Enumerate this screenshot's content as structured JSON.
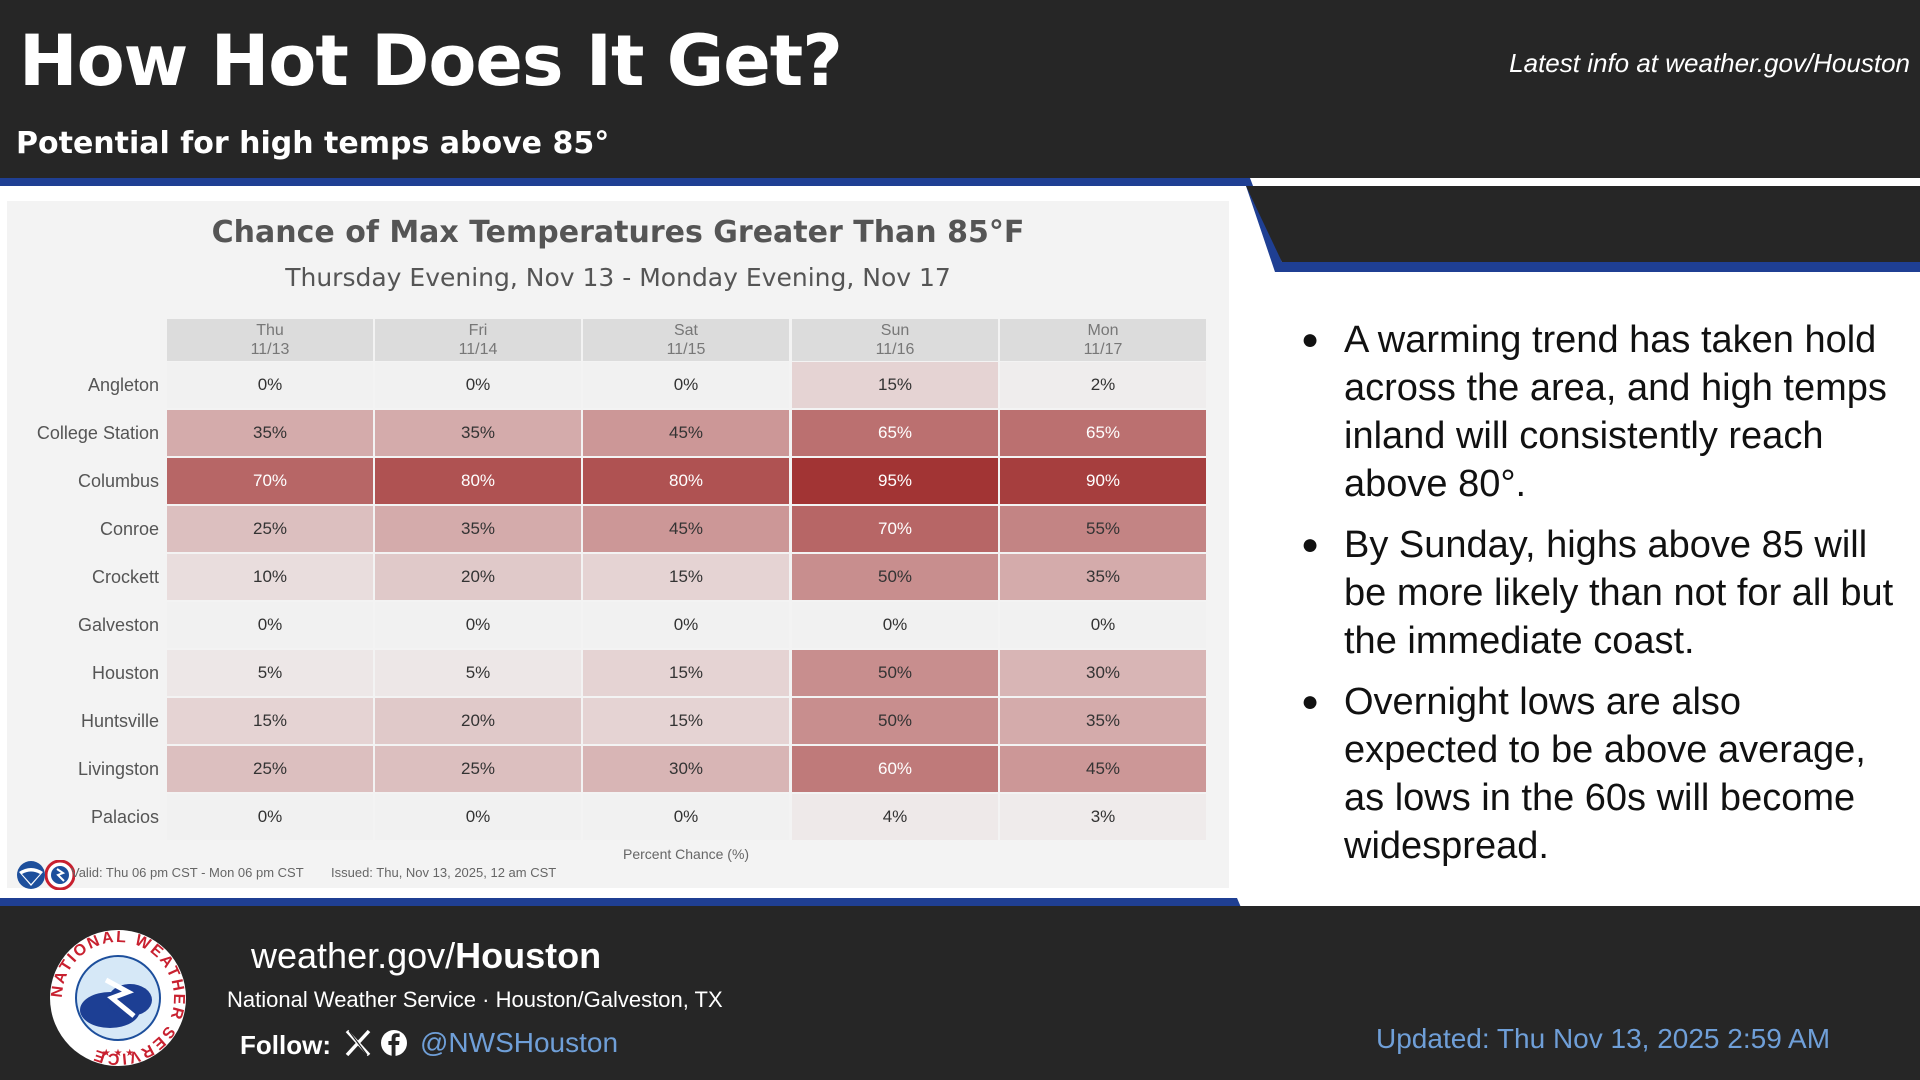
{
  "header": {
    "title": "How Hot Does It Get?",
    "subtitle": "Potential for high temps above 85°",
    "latest_info": "Latest info at weather.gov/Houston"
  },
  "colors": {
    "dark_bg": "#262626",
    "accent_blue": "#1f3f93",
    "cell_max": "#9e2a2a",
    "link_blue": "#6f9fd8"
  },
  "chart_data": {
    "type": "heatmap",
    "title": "Chance of Max Temperatures Greater Than 85°F",
    "subtitle": "Thursday Evening, Nov 13 - Monday Evening, Nov 17",
    "x_axis_label": "Percent Chance (%)",
    "columns": [
      {
        "day": "Thu",
        "date": "11/13"
      },
      {
        "day": "Fri",
        "date": "11/14"
      },
      {
        "day": "Sat",
        "date": "11/15"
      },
      {
        "day": "Sun",
        "date": "11/16"
      },
      {
        "day": "Mon",
        "date": "11/17"
      }
    ],
    "rows": [
      {
        "location": "Angleton",
        "values": [
          0,
          0,
          0,
          15,
          2
        ]
      },
      {
        "location": "College Station",
        "values": [
          35,
          35,
          45,
          65,
          65
        ]
      },
      {
        "location": "Columbus",
        "values": [
          70,
          80,
          80,
          95,
          90
        ]
      },
      {
        "location": "Conroe",
        "values": [
          25,
          35,
          45,
          70,
          55
        ]
      },
      {
        "location": "Crockett",
        "values": [
          10,
          20,
          15,
          50,
          35
        ]
      },
      {
        "location": "Galveston",
        "values": [
          0,
          0,
          0,
          0,
          0
        ]
      },
      {
        "location": "Houston",
        "values": [
          5,
          5,
          15,
          50,
          30
        ]
      },
      {
        "location": "Huntsville",
        "values": [
          15,
          20,
          15,
          50,
          35
        ]
      },
      {
        "location": "Livingston",
        "values": [
          25,
          25,
          30,
          60,
          45
        ]
      },
      {
        "location": "Palacios",
        "values": [
          0,
          0,
          0,
          4,
          3
        ]
      }
    ],
    "value_unit": "%",
    "value_range": [
      0,
      100
    ],
    "valid_text": "Valid: Thu 06 pm CST - Mon 06 pm CST",
    "issued_text": "Issued: Thu, Nov 13, 2025, 12 am CST"
  },
  "bullets": [
    "A warming trend has taken hold across the area, and high temps inland will consistently reach above 80°.",
    "By Sunday, highs above 85 will be more likely than not for all but the immediate coast.",
    "Overnight lows are also expected to be above average, as lows in the 60s will become widespread."
  ],
  "footer": {
    "site_prefix": "weather.gov/",
    "site_bold": "Houston",
    "office": "National Weather Service · Houston/Galveston, TX",
    "follow_label": "Follow:",
    "handle": "@NWSHouston",
    "updated": "Updated: Thu Nov 13, 2025 2:59 AM",
    "logo_text": "NATIONAL WEATHER SERVICE",
    "icons": [
      "noaa-logo-icon",
      "nws-logo-icon",
      "x-icon",
      "facebook-icon"
    ]
  }
}
